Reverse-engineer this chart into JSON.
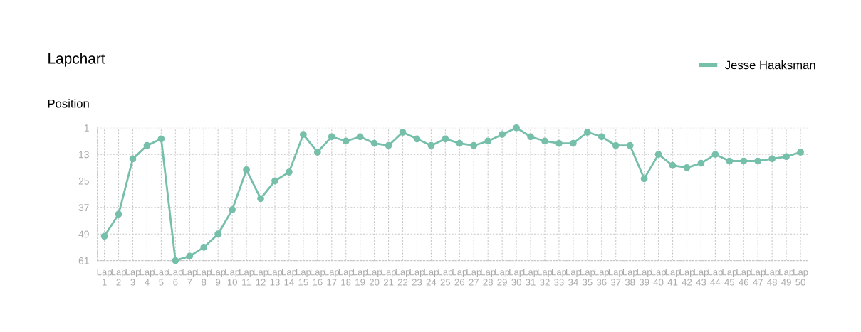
{
  "chart_data": {
    "type": "line",
    "title": "Lapchart",
    "ylabel": "Position",
    "categories": [
      "Lap 1",
      "Lap 2",
      "Lap 3",
      "Lap 4",
      "Lap 5",
      "Lap 6",
      "Lap 7",
      "Lap 8",
      "Lap 9",
      "Lap 10",
      "Lap 11",
      "Lap 12",
      "Lap 13",
      "Lap 14",
      "Lap 15",
      "Lap 16",
      "Lap 17",
      "Lap 18",
      "Lap 19",
      "Lap 20",
      "Lap 21",
      "Lap 22",
      "Lap 23",
      "Lap 24",
      "Lap 25",
      "Lap 26",
      "Lap 27",
      "Lap 28",
      "Lap 29",
      "Lap 30",
      "Lap 31",
      "Lap 32",
      "Lap 33",
      "Lap 34",
      "Lap 35",
      "Lap 36",
      "Lap 37",
      "Lap 38",
      "Lap 39",
      "Lap 40",
      "Lap 41",
      "Lap 42",
      "Lap 43",
      "Lap 44",
      "Lap 45",
      "Lap 46",
      "Lap 47",
      "Lap 48",
      "Lap 49",
      "Lap 50"
    ],
    "series": [
      {
        "name": "Jesse Haaksman",
        "color": "#76bfaa",
        "values": [
          50,
          40,
          15,
          9,
          6,
          61,
          59,
          55,
          49,
          38,
          20,
          33,
          25,
          21,
          4,
          12,
          5,
          7,
          5,
          8,
          9,
          3,
          6,
          9,
          6,
          8,
          9,
          7,
          4,
          1,
          5,
          7,
          8,
          8,
          3,
          5,
          9,
          9,
          24,
          13,
          18,
          19,
          17,
          13,
          16,
          16,
          16,
          15,
          14,
          12
        ]
      }
    ],
    "ylim": [
      61,
      1
    ],
    "yticks": [
      1,
      13,
      25,
      37,
      49,
      61
    ],
    "grid": true,
    "legend": "top right",
    "marker": "circle",
    "line_style": "solid"
  }
}
